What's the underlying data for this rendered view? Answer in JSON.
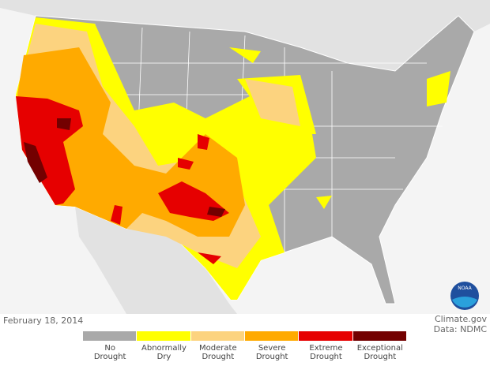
{
  "footer": {
    "date": "February 18, 2014",
    "credit": "Climate.gov",
    "source": "Data: NDMC"
  },
  "logo": {
    "text": "NOAA"
  },
  "legend": {
    "items": [
      {
        "label": "No\nDrought",
        "color": "#a9a9a9"
      },
      {
        "label": "Abnormally\nDry",
        "color": "#ffff00"
      },
      {
        "label": "Moderate\nDrought",
        "color": "#fcd37f"
      },
      {
        "label": "Severe\nDrought",
        "color": "#ffaa00"
      },
      {
        "label": "Extreme\nDrought",
        "color": "#e60000"
      },
      {
        "label": "Exceptional\nDrought",
        "color": "#730000"
      }
    ]
  }
}
